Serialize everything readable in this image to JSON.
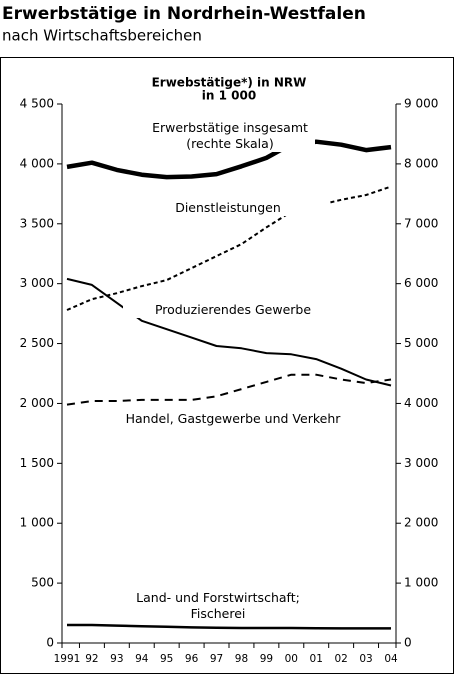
{
  "chart_data": {
    "type": "line",
    "title": "Erwerbstätige in Nordrhein-Westfalen",
    "subtitle": "nach Wirtschaftsbereichen",
    "chart_title": "Erwebstätige*) in NRW",
    "chart_unit": "in 1 000",
    "categories": [
      "1991",
      "92",
      "93",
      "94",
      "95",
      "96",
      "97",
      "98",
      "99",
      "00",
      "01",
      "02",
      "03",
      "04"
    ],
    "ylim": [
      0,
      4500
    ],
    "yticks": [
      0,
      {
        "value": 500,
        "label": "500"
      },
      {
        "value": 1000,
        "label": "1 000"
      },
      {
        "value": 1500,
        "label": "1 500"
      },
      {
        "value": 2000,
        "label": "2 000"
      },
      {
        "value": 2500,
        "label": "2 500"
      },
      {
        "value": 3000,
        "label": "3 000"
      },
      {
        "value": 3500,
        "label": "3 500"
      },
      {
        "value": 4000,
        "label": "4 000"
      },
      {
        "value": 4500,
        "label": "4 500"
      }
    ],
    "y2lim": [
      0,
      9000
    ],
    "y2ticks": [
      0,
      {
        "value": 1000,
        "label": "1 000"
      },
      {
        "value": 2000,
        "label": "2 000"
      },
      {
        "value": 3000,
        "label": "3 000"
      },
      {
        "value": 4000,
        "label": "4 000"
      },
      {
        "value": 5000,
        "label": "5 000"
      },
      {
        "value": 6000,
        "label": "6 000"
      },
      {
        "value": 7000,
        "label": "7 000"
      },
      {
        "value": 8000,
        "label": "8 000"
      },
      {
        "value": 9000,
        "label": "9 000"
      }
    ],
    "grid": false,
    "series": [
      {
        "name": "Erwerbstätige insgesamt (rechte Skala)",
        "axis": "y2",
        "color": "#000000",
        "values": [
          7950,
          8020,
          7900,
          7820,
          7780,
          7790,
          7830,
          7960,
          8100,
          8330,
          8370,
          8320,
          8230,
          8280
        ]
      },
      {
        "name": "Dienstleistungen",
        "color": "#000000",
        "values": [
          2780,
          2870,
          2920,
          2980,
          3030,
          3130,
          3230,
          3330,
          3470,
          3600,
          3650,
          3700,
          3740,
          3810
        ]
      },
      {
        "name": "Produzierendes Gewerbe",
        "color": "#000000",
        "values": [
          3040,
          2990,
          2840,
          2690,
          2620,
          2550,
          2480,
          2460,
          2420,
          2410,
          2370,
          2290,
          2200,
          2150
        ]
      },
      {
        "name": "Handel, Gastgewerbe und Verkehr",
        "color": "#000000",
        "values": [
          1990,
          2020,
          2020,
          2030,
          2030,
          2030,
          2060,
          2120,
          2180,
          2240,
          2240,
          2200,
          2170,
          2200
        ]
      },
      {
        "name": "Land- und Forstwirtschaft; Fischerei",
        "color": "#000000",
        "values": [
          150,
          150,
          145,
          140,
          135,
          130,
          128,
          125,
          125,
          125,
          123,
          122,
          122,
          122
        ]
      }
    ]
  }
}
